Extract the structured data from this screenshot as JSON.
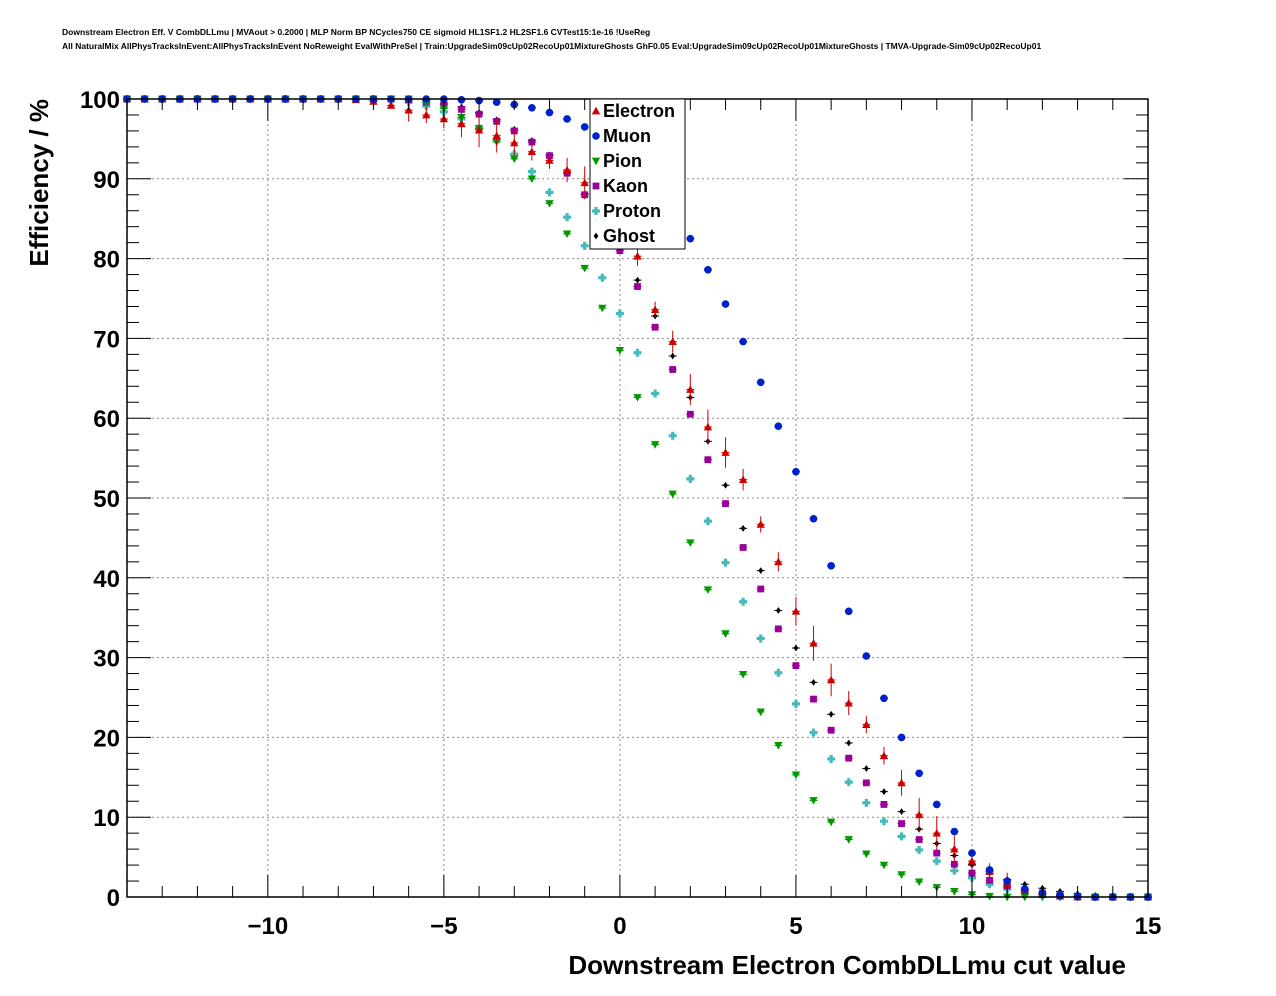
{
  "header": {
    "line1": "Downstream Electron Eff. V CombDLLmu | MVAout > 0.2000 | MLP Norm BP NCycles750 CE sigmoid HL1SF1.2 HL2SF1.6 CVTest15:1e-16 !UseReg",
    "line2": "All NaturalMix AllPhysTracksInEvent:AllPhysTracksInEvent NoReweight EvalWithPreSel | Train:UpgradeSim09cUp02RecoUp01MixtureGhosts GhF0.05 Eval:UpgradeSim09cUp02RecoUp01MixtureGhosts | TMVA-Upgrade-Sim09cUp02RecoUp01"
  },
  "chart_data": {
    "type": "scatter",
    "title": "",
    "xlabel": "Downstream Electron CombDLLmu cut value",
    "ylabel": "Efficiency / %",
    "xlim": [
      -14,
      15
    ],
    "ylim": [
      0,
      100
    ],
    "xticks": [
      -10,
      -5,
      0,
      5,
      10,
      15
    ],
    "xtick_labels": [
      "−10",
      "−5",
      "0",
      "5",
      "10",
      "15"
    ],
    "yticks": [
      0,
      10,
      20,
      30,
      40,
      50,
      60,
      70,
      80,
      90,
      100
    ],
    "ytick_labels": [
      "0",
      "10",
      "20",
      "30",
      "40",
      "50",
      "60",
      "70",
      "80",
      "90",
      "100"
    ],
    "grid": true,
    "legend_position": "top-center",
    "x": [
      -14.0,
      -13.5,
      -13.0,
      -12.5,
      -12.0,
      -11.5,
      -11.0,
      -10.5,
      -10.0,
      -9.5,
      -9.0,
      -8.5,
      -8.0,
      -7.5,
      -7.0,
      -6.5,
      -6.0,
      -5.5,
      -5.0,
      -4.5,
      -4.0,
      -3.5,
      -3.0,
      -2.5,
      -2.0,
      -1.5,
      -1.0,
      -0.5,
      0.0,
      0.5,
      1.0,
      1.5,
      2.0,
      2.5,
      3.0,
      3.5,
      4.0,
      4.5,
      5.0,
      5.5,
      6.0,
      6.5,
      7.0,
      7.5,
      8.0,
      8.5,
      9.0,
      9.5,
      10.0,
      10.5,
      11.0,
      11.5,
      12.0,
      12.5,
      13.0,
      13.5,
      14.0,
      14.5,
      15.0
    ],
    "series": [
      {
        "name": "Electron",
        "color": "#cc0000",
        "marker": "triangle-up",
        "values": [
          100,
          100,
          100,
          100,
          100,
          100,
          100,
          100,
          100,
          100,
          100,
          100,
          100,
          99.9,
          99.7,
          99.2,
          98.6,
          98.0,
          97.5,
          96.9,
          96.1,
          95.4,
          94.5,
          93.4,
          92.3,
          91.1,
          89.5,
          87.0,
          83.4,
          80.3,
          73.6,
          69.6,
          63.6,
          58.9,
          55.7,
          52.3,
          46.7,
          42.0,
          35.8,
          31.8,
          27.2,
          24.3,
          21.6,
          17.7,
          14.3,
          10.3,
          8.0,
          6.0,
          4.5,
          3.2,
          1.6,
          0.8,
          0.3,
          0.1,
          0,
          0,
          0,
          0,
          0
        ]
      },
      {
        "name": "Muon",
        "color": "#0022cc",
        "marker": "circle",
        "values": [
          100,
          100,
          100,
          100,
          100,
          100,
          100,
          100,
          100,
          100,
          100,
          100,
          100,
          100,
          100,
          100,
          100,
          100,
          100,
          99.9,
          99.8,
          99.6,
          99.3,
          98.9,
          98.3,
          97.5,
          96.5,
          95.2,
          93.5,
          91.3,
          88.8,
          85.8,
          82.5,
          78.6,
          74.3,
          69.6,
          64.5,
          59.0,
          53.3,
          47.4,
          41.5,
          35.8,
          30.2,
          24.9,
          20.0,
          15.5,
          11.6,
          8.2,
          5.5,
          3.4,
          2.0,
          1.0,
          0.5,
          0.2,
          0.1,
          0,
          0,
          0,
          0
        ]
      },
      {
        "name": "Pion",
        "color": "#009900",
        "marker": "triangle-down",
        "values": [
          100,
          100,
          100,
          100,
          100,
          100,
          100,
          100,
          100,
          100,
          100,
          100,
          100,
          100,
          100,
          100,
          100,
          99.5,
          98.8,
          97.7,
          96.3,
          94.6,
          92.5,
          90.0,
          86.9,
          83.1,
          78.8,
          73.8,
          68.5,
          62.6,
          56.7,
          50.5,
          44.4,
          38.5,
          33.0,
          27.9,
          23.2,
          19.0,
          15.3,
          12.1,
          9.4,
          7.2,
          5.4,
          4.0,
          2.8,
          1.9,
          1.2,
          0.7,
          0.3,
          0.1,
          0,
          0,
          0,
          0,
          0,
          0,
          0,
          0,
          0
        ]
      },
      {
        "name": "Kaon",
        "color": "#990099",
        "marker": "square",
        "values": [
          100,
          100,
          100,
          100,
          100,
          100,
          100,
          100,
          100,
          100,
          100,
          100,
          100,
          100,
          100,
          100,
          99.9,
          99.6,
          99.3,
          98.7,
          98.1,
          97.2,
          96.0,
          94.6,
          92.9,
          90.7,
          88.0,
          84.8,
          81.0,
          76.5,
          71.4,
          66.1,
          60.5,
          54.8,
          49.3,
          43.8,
          38.6,
          33.6,
          29.0,
          24.8,
          20.9,
          17.4,
          14.3,
          11.6,
          9.2,
          7.2,
          5.5,
          4.1,
          3.0,
          2.1,
          1.4,
          0.9,
          0.5,
          0.3,
          0.1,
          0,
          0,
          0,
          0
        ]
      },
      {
        "name": "Proton",
        "color": "#44bbbb",
        "marker": "cross",
        "values": [
          100,
          100,
          100,
          100,
          100,
          100,
          100,
          100,
          100,
          100,
          100,
          100,
          100,
          100,
          100,
          99.9,
          99.6,
          99.1,
          98.4,
          97.5,
          96.3,
          94.9,
          93.1,
          90.9,
          88.3,
          85.2,
          81.6,
          77.6,
          73.1,
          68.2,
          63.1,
          57.8,
          52.4,
          47.1,
          41.9,
          37.0,
          32.4,
          28.1,
          24.2,
          20.6,
          17.3,
          14.4,
          11.8,
          9.5,
          7.6,
          5.9,
          4.5,
          3.3,
          2.4,
          1.6,
          1.0,
          0.6,
          0.3,
          0.1,
          0,
          0,
          0,
          0,
          0
        ]
      },
      {
        "name": "Ghost",
        "color": "#000000",
        "marker": "diamond",
        "values": [
          100,
          100,
          100,
          100,
          100,
          100,
          100,
          100,
          100,
          100,
          100,
          100,
          100,
          100,
          100,
          100,
          100,
          99.8,
          99.5,
          99.0,
          98.3,
          97.4,
          96.2,
          94.8,
          93.0,
          90.8,
          88.1,
          85.0,
          81.4,
          77.3,
          72.8,
          67.8,
          62.6,
          57.1,
          51.6,
          46.2,
          40.9,
          35.9,
          31.2,
          26.9,
          22.9,
          19.3,
          16.1,
          13.2,
          10.7,
          8.5,
          6.7,
          5.2,
          4.0,
          3.0,
          2.2,
          1.6,
          1.1,
          0.7,
          0.4,
          0.2,
          0.1,
          0,
          0
        ]
      }
    ]
  }
}
